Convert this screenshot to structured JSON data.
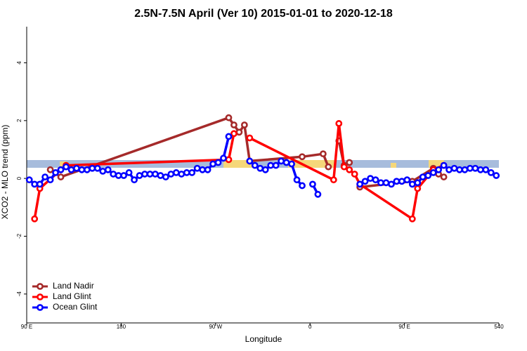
{
  "chart_data": {
    "type": "line",
    "title": "2.5N-7.5N April (Ver 10)   2015-01-01 to 2020-12-18",
    "xlabel": "Longitude",
    "ylabel": "XCO2 - MLO trend (ppm)",
    "xlim": [
      90,
      540
    ],
    "ylim": [
      -5,
      5.25
    ],
    "xticks": [
      {
        "value": 90,
        "label": "90 E"
      },
      180,
      {
        "value": 270,
        "label": "90 W"
      },
      {
        "value": 360,
        "label": "0"
      },
      {
        "value": 450,
        "label": "90 E"
      },
      540
    ],
    "yticks": [
      -4,
      -2,
      0,
      2,
      4
    ],
    "legend": "bottomleft",
    "series": [
      {
        "name": "Land Nadir",
        "color": "#a52a2a",
        "x": [
          112.5,
          122.5,
          282.5,
          287.5,
          292.5,
          297.5,
          302.5,
          352.5,
          372.5,
          377.5,
          382.5,
          387.5,
          392.5,
          397.5,
          402.5,
          407.5,
          457.5,
          477.5,
          482.5,
          487.5
        ],
        "values": [
          0.3,
          0.05,
          2.1,
          1.85,
          1.6,
          1.85,
          0.6,
          0.75,
          0.85,
          0.4,
          null,
          1.3,
          0.45,
          0.55,
          null,
          -0.3,
          -0.1,
          0.35,
          0.15,
          0.05
        ]
      },
      {
        "name": "Land Glint",
        "color": "#ff0000",
        "x": [
          97.5,
          102.5,
          122.5,
          127.5,
          282.5,
          287.5,
          292.5,
          302.5,
          382.5,
          387.5,
          392.5,
          397.5,
          402.5,
          407.5,
          457.5,
          462.5,
          477.5,
          487.5
        ],
        "values": [
          -1.4,
          -0.35,
          0.3,
          0.45,
          0.65,
          1.55,
          null,
          1.4,
          -0.05,
          1.9,
          0.4,
          0.3,
          0.15,
          -0.2,
          -1.4,
          -0.35,
          0.3,
          0.45
        ]
      },
      {
        "name": "Ocean Glint",
        "color": "#0000ff",
        "x": [
          92.5,
          97.5,
          102.5,
          107.5,
          112.5,
          117.5,
          122.5,
          127.5,
          132.5,
          137.5,
          142.5,
          147.5,
          152.5,
          157.5,
          162.5,
          167.5,
          172.5,
          177.5,
          182.5,
          187.5,
          192.5,
          197.5,
          202.5,
          207.5,
          212.5,
          217.5,
          222.5,
          227.5,
          232.5,
          237.5,
          242.5,
          247.5,
          252.5,
          257.5,
          262.5,
          267.5,
          272.5,
          277.5,
          282.5,
          287.5,
          302.5,
          307.5,
          312.5,
          317.5,
          322.5,
          327.5,
          332.5,
          337.5,
          342.5,
          347.5,
          352.5,
          357.5,
          362.5,
          367.5,
          372.5,
          407.5,
          412.5,
          417.5,
          422.5,
          427.5,
          432.5,
          437.5,
          442.5,
          447.5,
          452.5,
          457.5,
          462.5,
          467.5,
          472.5,
          477.5,
          482.5,
          487.5,
          492.5,
          497.5,
          502.5,
          507.5,
          512.5,
          517.5,
          522.5,
          527.5,
          532.5,
          537.5
        ],
        "values": [
          -0.05,
          -0.2,
          -0.2,
          0.05,
          -0.05,
          0.2,
          0.3,
          0.4,
          0.3,
          0.35,
          0.3,
          0.3,
          0.35,
          0.35,
          0.25,
          0.3,
          0.15,
          0.1,
          0.1,
          0.2,
          -0.05,
          0.1,
          0.15,
          0.15,
          0.15,
          0.1,
          0.05,
          0.15,
          0.2,
          0.15,
          0.2,
          0.2,
          0.35,
          0.3,
          0.3,
          0.5,
          0.55,
          0.7,
          1.45,
          null,
          0.6,
          0.45,
          0.35,
          0.3,
          0.45,
          0.45,
          0.6,
          0.55,
          0.5,
          -0.05,
          -0.25,
          null,
          -0.2,
          -0.55,
          null,
          -0.2,
          -0.1,
          0,
          -0.05,
          -0.15,
          -0.15,
          -0.2,
          -0.1,
          -0.1,
          -0.05,
          -0.2,
          -0.15,
          0.05,
          0.1,
          0.2,
          0.3,
          0.45,
          0.3,
          0.35,
          0.3,
          0.3,
          0.35,
          0.35,
          0.3,
          0.3,
          0.2,
          0.1
        ]
      }
    ]
  }
}
